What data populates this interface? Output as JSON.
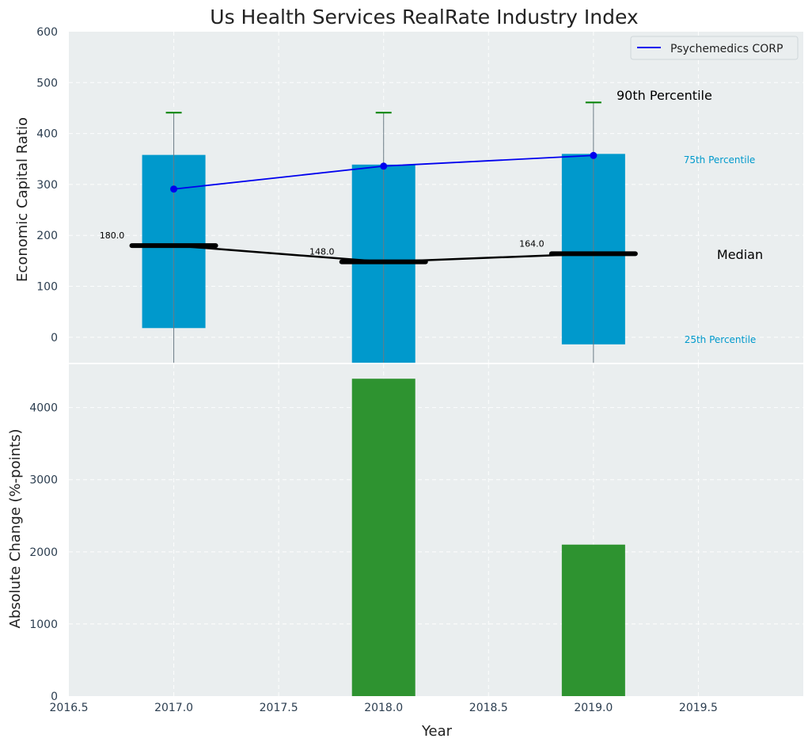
{
  "chart_data": [
    {
      "type": "bar",
      "panel": "top",
      "title": "Us Health Services RealRate Industry Index",
      "ylabel": "Economic Capital Ratio",
      "ylim": [
        -50,
        600
      ],
      "xlim": [
        2016.5,
        2020.0
      ],
      "grid": true,
      "y_ticks": [
        0,
        100,
        200,
        300,
        400,
        500,
        600
      ],
      "box_series": {
        "x": [
          2017,
          2018,
          2019
        ],
        "p25": [
          18,
          -50,
          -14
        ],
        "p75": [
          358,
          339,
          360
        ],
        "p90": [
          441,
          441,
          461
        ],
        "median": [
          180.0,
          148.0,
          164.0
        ],
        "median_labels": [
          "180.0",
          "148.0",
          "164.0"
        ],
        "color": "#0099cc",
        "whisker_cap_color": "#008000",
        "median_color": "#000000"
      },
      "series": [
        {
          "name": "Psychemedics CORP",
          "x": [
            2017,
            2018,
            2019
          ],
          "values": [
            291,
            336,
            357
          ],
          "color": "#0000ee"
        }
      ],
      "legend": {
        "placement": "top-right",
        "entries": [
          "Psychemedics CORP"
        ]
      },
      "annotations": {
        "p90": "90th Percentile",
        "p75": "75th Percentile",
        "median": "Median",
        "p25": "25th Percentile"
      }
    },
    {
      "type": "bar",
      "panel": "bottom",
      "xlabel": "Year",
      "ylabel": "Absolute Change (%-points)",
      "ylim": [
        0,
        4600
      ],
      "xlim": [
        2016.5,
        2020.0
      ],
      "grid": true,
      "y_ticks": [
        0,
        1000,
        2000,
        3000,
        4000
      ],
      "x_ticks": [
        2016.5,
        2017.0,
        2017.5,
        2018.0,
        2018.5,
        2019.0,
        2019.5
      ],
      "x_tick_labels": [
        "2016.5",
        "2017.0",
        "2017.5",
        "2018.0",
        "2018.5",
        "2019.0",
        "2019.5"
      ],
      "x": [
        2018,
        2019
      ],
      "values": [
        4400,
        2100
      ],
      "color": "#2e9330"
    }
  ],
  "colors": {
    "plot_background": "#eaeeef",
    "box": "#0099cc",
    "company_line": "#0000ee",
    "delta_bar": "#2e9330",
    "percentile_label": "#0099cc"
  }
}
